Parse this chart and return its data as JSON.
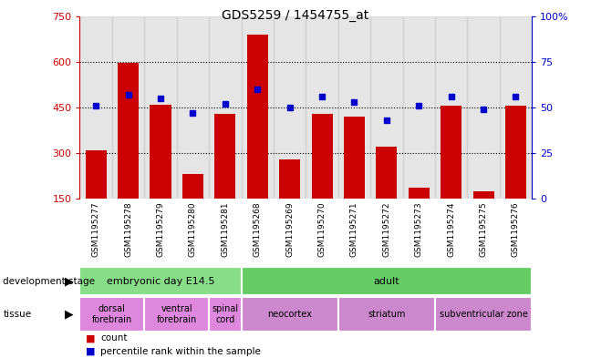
{
  "title": "GDS5259 / 1454755_at",
  "samples": [
    "GSM1195277",
    "GSM1195278",
    "GSM1195279",
    "GSM1195280",
    "GSM1195281",
    "GSM1195268",
    "GSM1195269",
    "GSM1195270",
    "GSM1195271",
    "GSM1195272",
    "GSM1195273",
    "GSM1195274",
    "GSM1195275",
    "GSM1195276"
  ],
  "counts": [
    310,
    595,
    460,
    230,
    430,
    690,
    280,
    430,
    420,
    320,
    185,
    455,
    175,
    455
  ],
  "percentiles": [
    51,
    57,
    55,
    47,
    52,
    60,
    50,
    56,
    53,
    43,
    51,
    56,
    49,
    56
  ],
  "bar_color": "#cc0000",
  "dot_color": "#0000cc",
  "ylim_left": [
    150,
    750
  ],
  "ylim_right": [
    0,
    100
  ],
  "yticks_left": [
    150,
    300,
    450,
    600,
    750
  ],
  "yticks_right": [
    0,
    25,
    50,
    75,
    100
  ],
  "development_stages": [
    {
      "label": "embryonic day E14.5",
      "start": 0,
      "end": 4,
      "color": "#88dd88"
    },
    {
      "label": "adult",
      "start": 5,
      "end": 13,
      "color": "#66cc66"
    }
  ],
  "tissues": [
    {
      "label": "dorsal\nforebrain",
      "start": 0,
      "end": 1,
      "color": "#dd88dd"
    },
    {
      "label": "ventral\nforebrain",
      "start": 2,
      "end": 3,
      "color": "#dd88dd"
    },
    {
      "label": "spinal\ncord",
      "start": 4,
      "end": 4,
      "color": "#dd88dd"
    },
    {
      "label": "neocortex",
      "start": 5,
      "end": 7,
      "color": "#cc88cc"
    },
    {
      "label": "striatum",
      "start": 8,
      "end": 10,
      "color": "#cc88cc"
    },
    {
      "label": "subventricular zone",
      "start": 11,
      "end": 13,
      "color": "#cc88cc"
    }
  ],
  "left_axis_color": "#cc0000",
  "right_axis_color": "#0000cc",
  "xtick_bg": "#cccccc",
  "grid_dotted_levels": [
    300,
    450,
    600
  ],
  "label_dev_stage": "development stage",
  "label_tissue": "tissue",
  "legend_items": [
    {
      "color": "#cc0000",
      "label": "count"
    },
    {
      "color": "#0000cc",
      "label": "percentile rank within the sample"
    }
  ]
}
